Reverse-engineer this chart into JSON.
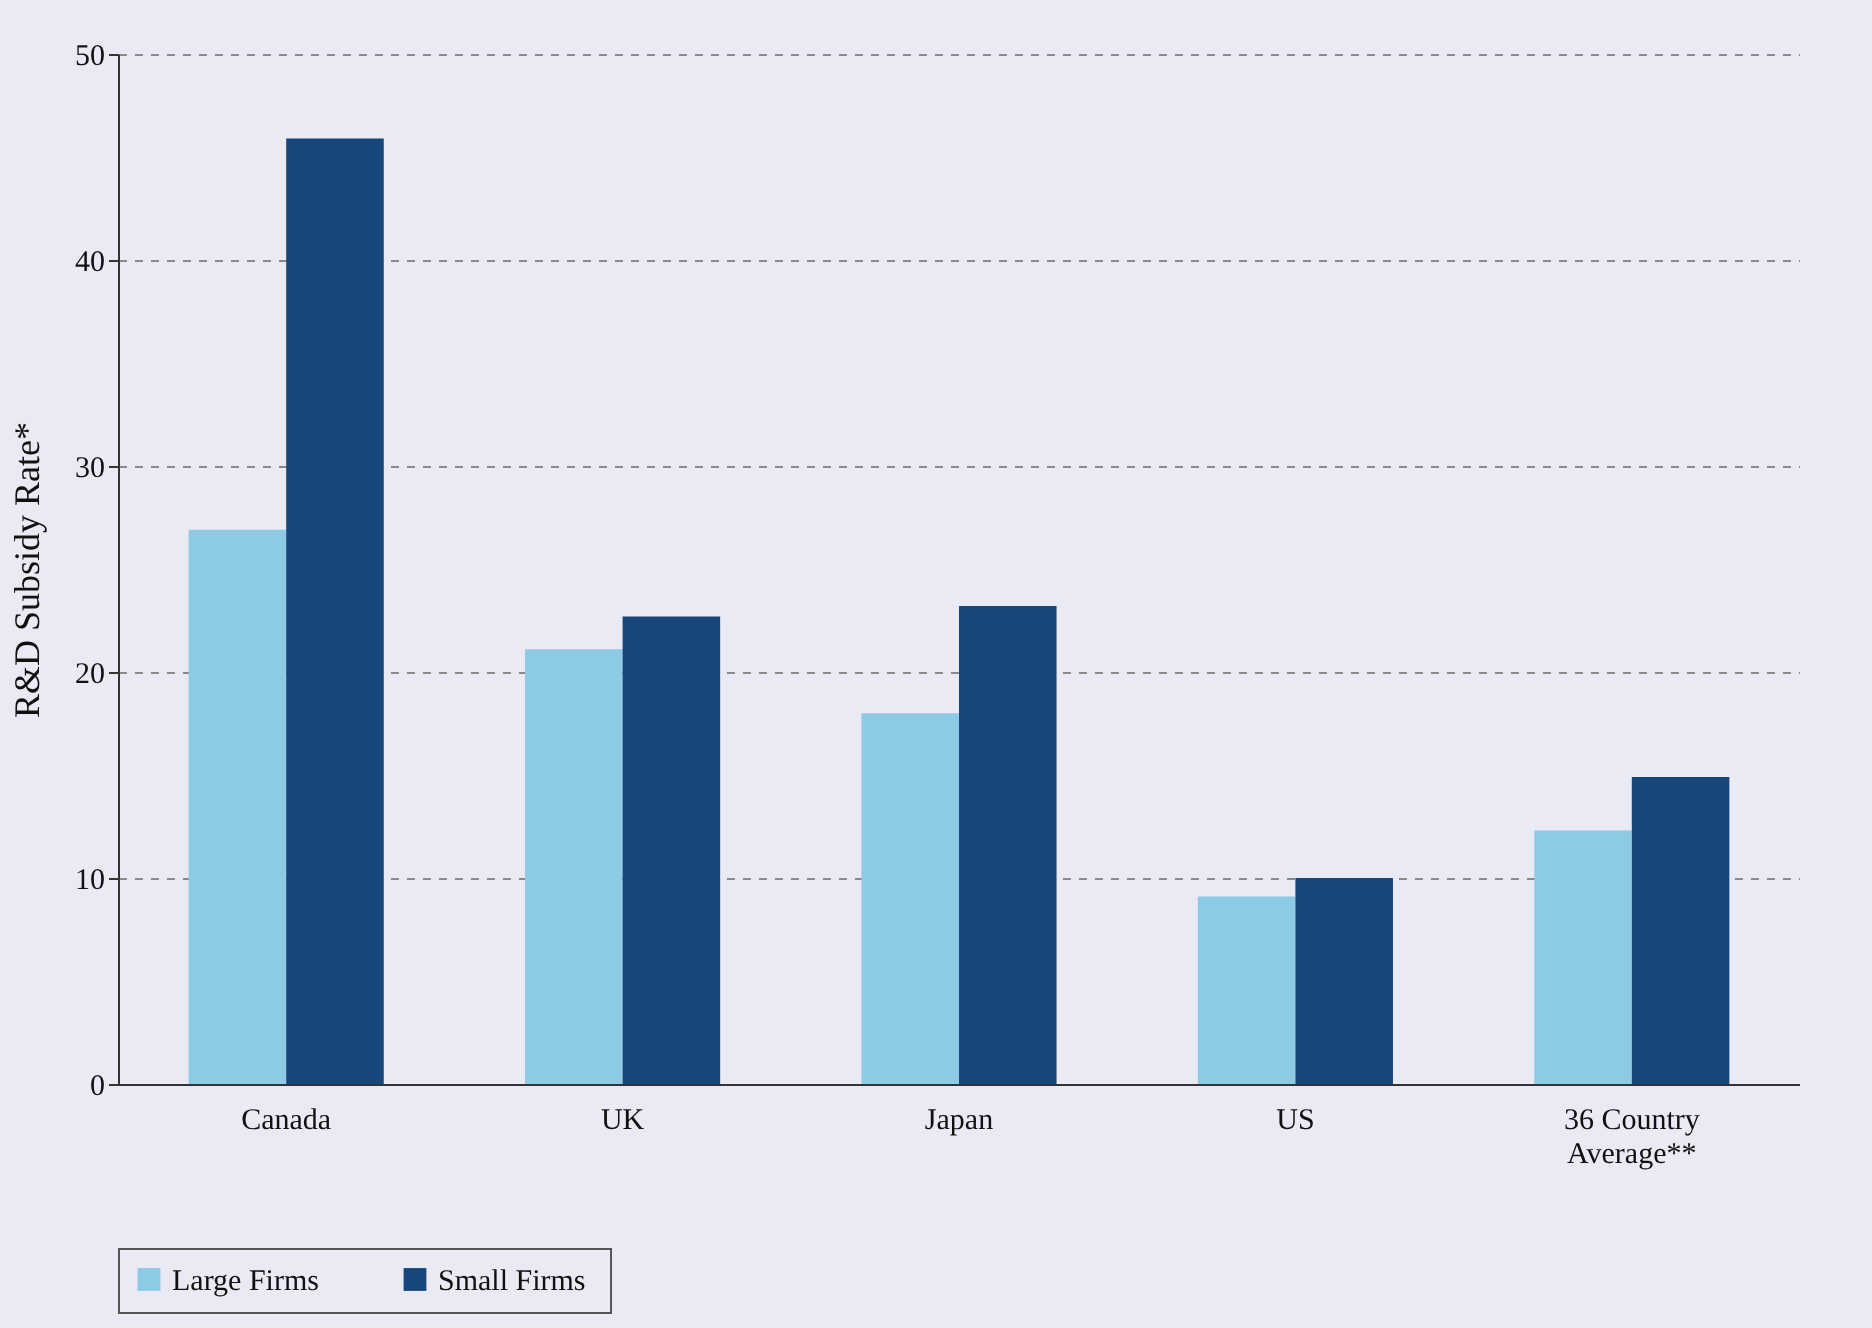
{
  "chart_data": {
    "type": "bar",
    "ylabel": "R&D Subsidy Rate*",
    "categories": [
      "Canada",
      "UK",
      "Japan",
      "US",
      "36 Country Average**"
    ],
    "series": [
      {
        "name": "Large Firms",
        "color": "#8ccae6",
        "values": [
          26.9,
          21.1,
          18.0,
          9.1,
          12.3
        ]
      },
      {
        "name": "Small  Firms",
        "color": "#16467a",
        "values": [
          45.9,
          22.7,
          23.2,
          10.0,
          14.9
        ]
      }
    ],
    "ylim": [
      0,
      50
    ],
    "yticks": [
      0,
      10,
      20,
      30,
      40,
      50
    ],
    "grid": "y",
    "legend": "bottom"
  }
}
